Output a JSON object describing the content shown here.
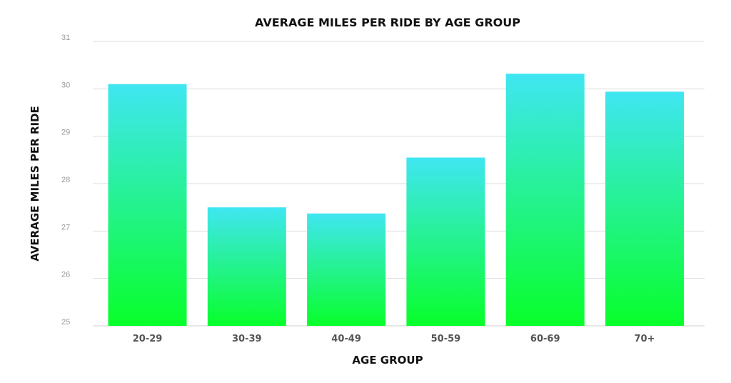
{
  "chart_data": {
    "type": "bar",
    "title": "AVERAGE MILES PER RIDE BY AGE GROUP",
    "xlabel": "AGE GROUP",
    "ylabel": "AVERAGE MILES PER RIDE",
    "categories": [
      "20-29",
      "30-39",
      "40-49",
      "50-59",
      "60-69",
      "70+"
    ],
    "values": [
      30.1,
      27.5,
      27.37,
      28.55,
      30.32,
      29.94
    ],
    "ylim": [
      25,
      31
    ],
    "yticks": [
      "25",
      "26",
      "27",
      "28",
      "29",
      "30",
      "31"
    ],
    "grid": true,
    "legend": "none",
    "colors": {
      "bar_top": "#40e6f2",
      "bar_bottom": "#08ff2a",
      "grid": "#dddddd"
    }
  }
}
